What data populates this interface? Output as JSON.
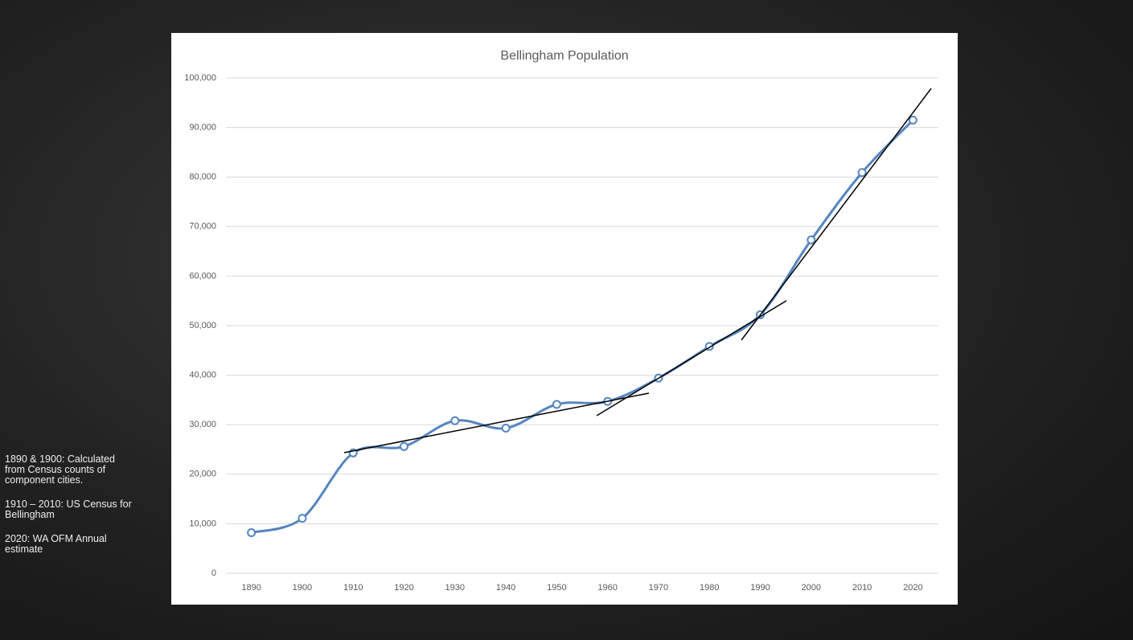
{
  "chart_data": {
    "type": "line",
    "title": "Bellingham Population",
    "categories": [
      "1890",
      "1900",
      "1910",
      "1920",
      "1930",
      "1940",
      "1950",
      "1960",
      "1970",
      "1980",
      "1990",
      "2000",
      "2010",
      "2020"
    ],
    "series": [
      {
        "name": "Population",
        "color": "#5585bf",
        "values": [
          8200,
          11100,
          24300,
          25600,
          30800,
          29300,
          34100,
          34700,
          39400,
          45800,
          52200,
          67300,
          80900,
          91500
        ]
      }
    ],
    "ylim": [
      0,
      100000
    ],
    "yticks": [
      0,
      {
        "value": 10000,
        "label": "10,000"
      },
      {
        "value": 20000,
        "label": "20,000"
      },
      {
        "value": 30000,
        "label": "30,000"
      },
      {
        "value": 40000,
        "label": "40,000"
      },
      {
        "value": 50000,
        "label": "50,000"
      },
      {
        "value": 60000,
        "label": "60,000"
      },
      {
        "value": 70000,
        "label": "70,000"
      },
      {
        "value": 80000,
        "label": "80,000"
      },
      {
        "value": 90000,
        "label": "90,000"
      },
      {
        "value": 100000,
        "label": "100,000"
      }
    ],
    "grid": true
  },
  "notes": [
    "1890 & 1900: Calculated from Census counts of component cities.",
    "1910 – 2010: US Census for Bellingham",
    "2020: WA OFM Annual estimate"
  ]
}
